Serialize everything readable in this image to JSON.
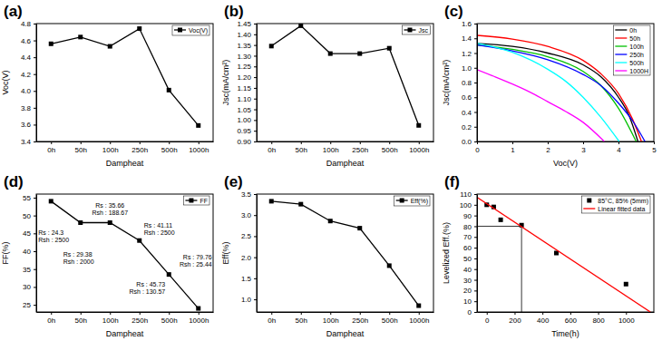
{
  "chart_data": [
    {
      "title": "(a)",
      "type": "line",
      "categories": [
        "0h",
        "50h",
        "100h",
        "250h",
        "500h",
        "1000h"
      ],
      "x_label": "Dampheat",
      "y_label": "Voc(V)",
      "series": [
        {
          "name": "Voc(V)",
          "color": "#000000",
          "marker": "square",
          "values": [
            4.56,
            4.64,
            4.53,
            4.74,
            4.01,
            3.59
          ]
        }
      ],
      "ylim": [
        3.4,
        4.8
      ],
      "yticks": [
        3.4,
        3.6,
        3.8,
        {
          "value": 4,
          "label": "4.0"
        },
        4.2,
        4.4,
        4.6,
        4.8
      ],
      "legend": "upper right"
    },
    {
      "title": "(b)",
      "type": "line",
      "categories": [
        "0h",
        "50h",
        "100h",
        "250h",
        "500h",
        "1000h"
      ],
      "x_label": "Dampheat",
      "y_label": "Jsc(mA/cm²)",
      "series": [
        {
          "name": "Jsc",
          "color": "#000000",
          "marker": "square",
          "values": [
            1.345,
            1.44,
            1.31,
            1.31,
            1.335,
            0.975
          ]
        }
      ],
      "ylim": [
        0.9,
        1.45
      ],
      "yticks": [
        {
          "value": 0.9,
          "label": "0.90"
        },
        0.95,
        {
          "value": 1,
          "label": "1.00"
        },
        1.05,
        {
          "value": 1.1,
          "label": "1.10"
        },
        1.15,
        {
          "value": 1.2,
          "label": "1.20"
        },
        1.25,
        {
          "value": 1.3,
          "label": "1.30"
        },
        1.35,
        {
          "value": 1.4,
          "label": "1.40"
        },
        1.45
      ],
      "legend": "upper right"
    },
    {
      "title": "(c)",
      "type": "line",
      "x_label": "Voc(V)",
      "y_label": "Jsc(mA/cm²)",
      "series": [
        {
          "name": "0h",
          "color": "#000000",
          "x": [
            0,
            1,
            2,
            3,
            3.5,
            4,
            4.3,
            4.55
          ],
          "values": [
            1.33,
            1.29,
            1.2,
            1.04,
            0.88,
            0.6,
            0.35,
            0
          ]
        },
        {
          "name": "50h",
          "color": "#ff0000",
          "x": [
            0,
            1,
            2,
            3,
            3.5,
            4,
            4.4,
            4.65
          ],
          "values": [
            1.44,
            1.39,
            1.29,
            1.1,
            0.92,
            0.65,
            0.3,
            0
          ]
        },
        {
          "name": "100h",
          "color": "#00c000",
          "x": [
            0,
            1,
            2,
            3,
            3.5,
            4,
            4.5
          ],
          "values": [
            1.31,
            1.25,
            1.15,
            0.95,
            0.76,
            0.45,
            0
          ]
        },
        {
          "name": "250h",
          "color": "#0000ff",
          "x": [
            0,
            1,
            2,
            3,
            3.5,
            4,
            4.4,
            4.75
          ],
          "values": [
            1.31,
            1.23,
            1.11,
            0.91,
            0.76,
            0.52,
            0.28,
            0
          ]
        },
        {
          "name": "500h",
          "color": "#00ffff",
          "x": [
            0,
            1,
            2,
            2.5,
            3,
            3.5,
            4.02
          ],
          "values": [
            1.335,
            1.21,
            0.98,
            0.82,
            0.6,
            0.33,
            0
          ]
        },
        {
          "name": "1000H",
          "color": "#ff00ff",
          "x": [
            0,
            0.5,
            1,
            1.5,
            2,
            2.5,
            3,
            3.6
          ],
          "values": [
            0.975,
            0.88,
            0.78,
            0.67,
            0.54,
            0.41,
            0.26,
            0
          ]
        }
      ],
      "xlim": [
        0,
        5
      ],
      "xticks": [
        0,
        1,
        2,
        3,
        4,
        5
      ],
      "ylim": [
        0,
        1.6
      ],
      "yticks": [
        {
          "value": 0,
          "label": "0.0"
        },
        0.2,
        0.4,
        0.6,
        0.8,
        {
          "value": 1,
          "label": "1.0"
        },
        1.2,
        1.4,
        1.6
      ],
      "legend": "upper right"
    },
    {
      "title": "(d)",
      "type": "line",
      "categories": [
        "0h",
        "50h",
        "100h",
        "250h",
        "500h",
        "1000h"
      ],
      "x_label": "Dampheat",
      "y_label": "FF(%)",
      "series": [
        {
          "name": "FF",
          "color": "#000000",
          "marker": "square",
          "values": [
            54,
            48,
            48,
            43,
            33.5,
            24
          ]
        }
      ],
      "annotations": [
        {
          "lines": [
            "Rs : 24.3",
            "Rsh : 2500"
          ]
        },
        {
          "lines": [
            "Rs : 29.38",
            "Rsh : 2000"
          ]
        },
        {
          "lines": [
            "Rs : 35.66",
            "Rsh : 188.67"
          ]
        },
        {
          "lines": [
            "Rs : 41.11",
            "Rsh : 2500"
          ]
        },
        {
          "lines": [
            "Rs : 45.73",
            "Rsh : 130.57"
          ]
        },
        {
          "lines": [
            "Rs : 79.76",
            "Rsh : 25.44"
          ]
        }
      ],
      "ylim": [
        23,
        56
      ],
      "yticks": [
        25,
        30,
        35,
        40,
        45,
        50,
        55
      ],
      "legend": "upper right"
    },
    {
      "title": "(e)",
      "type": "line",
      "categories": [
        "0h",
        "50h",
        "100h",
        "250h",
        "500h",
        "1000h"
      ],
      "x_label": "Dampheat",
      "y_label": "Eff(%)",
      "series": [
        {
          "name": "Eff(%)",
          "color": "#000000",
          "marker": "square",
          "values": [
            3.33,
            3.26,
            2.86,
            2.69,
            1.8,
            0.85
          ]
        }
      ],
      "ylim": [
        0.7,
        3.5
      ],
      "yticks": [
        {
          "value": 1,
          "label": "1.0"
        },
        1.5,
        {
          "value": 2,
          "label": "2.0"
        },
        2.5,
        {
          "value": 3,
          "label": "3.0"
        },
        3.5
      ],
      "legend": "upper right"
    },
    {
      "title": "(f)",
      "type": "scatter",
      "x_label": "Time(h)",
      "y_label": "Levelized Eff.(%)",
      "series": [
        {
          "name": "85°C, 85% (5mm)",
          "type": "scatter",
          "marker": "square",
          "color": "#000000",
          "x": [
            0,
            50,
            100,
            250,
            500,
            1000
          ],
          "values": [
            100,
            98,
            86,
            81,
            55,
            26
          ]
        },
        {
          "name": "Linear fitted data",
          "type": "line",
          "color": "#ff0000",
          "x": [
            -70,
            1175
          ],
          "values": [
            107,
            0
          ]
        }
      ],
      "reference_point": {
        "x": 250,
        "y": 80
      },
      "xlim": [
        -70,
        1200
      ],
      "xticks": [
        0,
        200,
        400,
        600,
        800,
        1000
      ],
      "ylim": [
        0,
        110
      ],
      "yticks": [
        0,
        10,
        20,
        30,
        40,
        50,
        60,
        70,
        80,
        90,
        100,
        110
      ],
      "legend": "upper right"
    }
  ]
}
